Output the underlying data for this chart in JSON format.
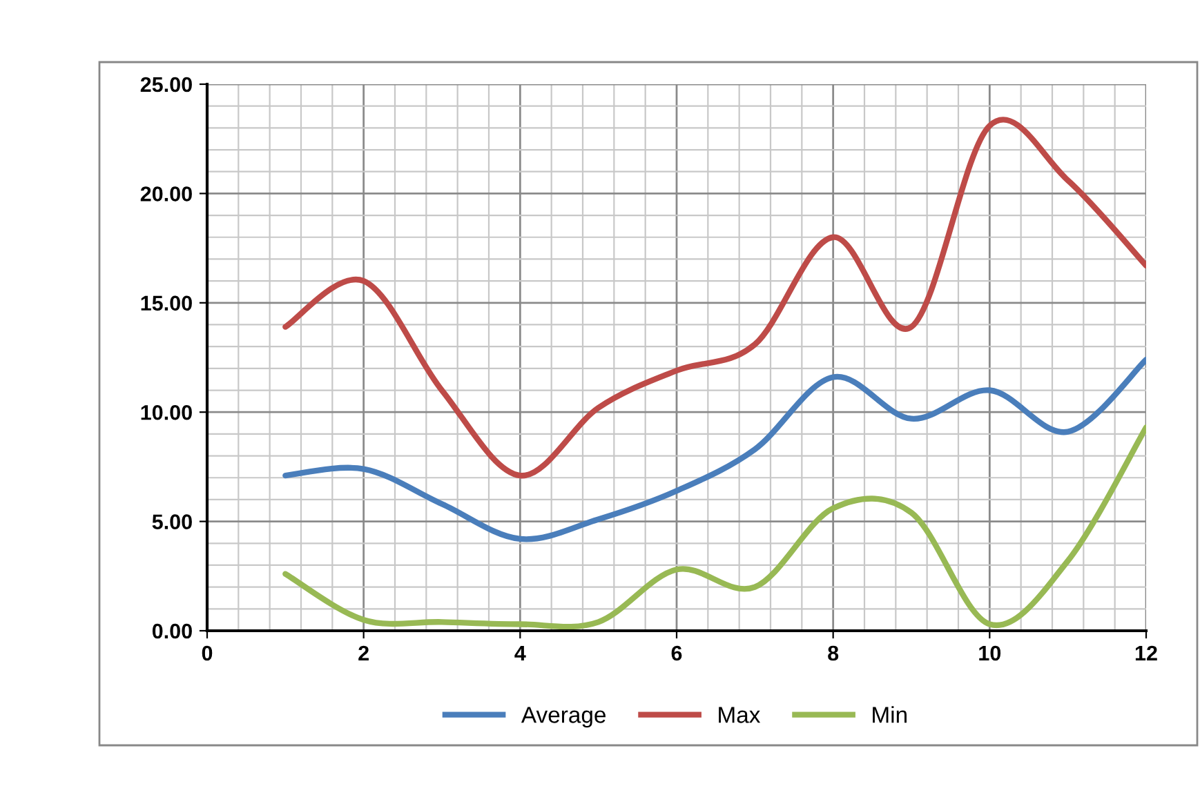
{
  "chart_data": {
    "type": "line",
    "x": [
      1,
      2,
      3,
      4,
      5,
      6,
      7,
      8,
      9,
      10,
      11,
      12
    ],
    "series": [
      {
        "name": "Average",
        "color": "#4a7ebb",
        "values": [
          7.1,
          7.4,
          5.8,
          4.2,
          5.1,
          6.4,
          8.3,
          11.6,
          9.7,
          11.0,
          9.1,
          12.4
        ]
      },
      {
        "name": "Max",
        "color": "#be4b48",
        "values": [
          13.9,
          16.0,
          11.0,
          7.1,
          10.2,
          11.9,
          13.1,
          18.0,
          13.9,
          23.1,
          20.6,
          16.7
        ]
      },
      {
        "name": "Min",
        "color": "#98b954",
        "values": [
          2.6,
          0.5,
          0.4,
          0.3,
          0.4,
          2.8,
          2.0,
          5.6,
          5.4,
          0.3,
          3.2,
          9.3
        ]
      }
    ],
    "xlim": [
      0,
      12
    ],
    "xticks": [
      0,
      2,
      4,
      6,
      8,
      10,
      12
    ],
    "ylim": [
      0,
      25
    ],
    "yticks": [
      {
        "value": 0,
        "label": "0.00"
      },
      {
        "value": 5,
        "label": "5.00"
      },
      {
        "value": 10,
        "label": "10.00"
      },
      {
        "value": 15,
        "label": "15.00"
      },
      {
        "value": 20,
        "label": "20.00"
      },
      {
        "value": 25,
        "label": "25.00"
      }
    ],
    "grid": true,
    "legend": "bottom",
    "marker": "none",
    "line_style": "solid"
  }
}
